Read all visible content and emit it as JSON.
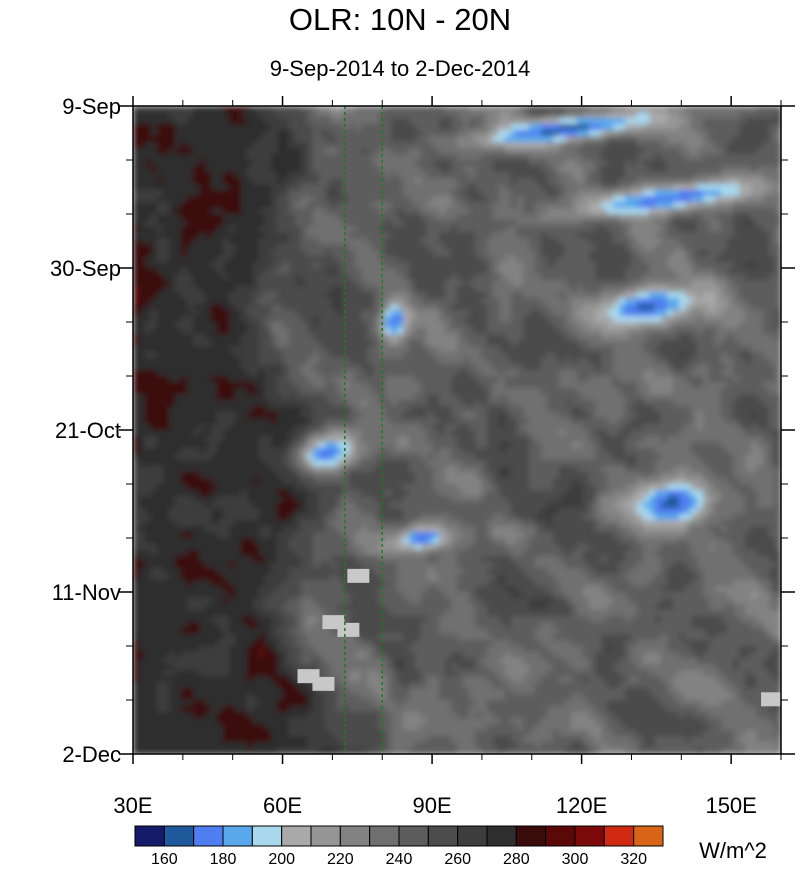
{
  "chart_data": {
    "type": "heatmap",
    "title": "OLR: 10N - 20N",
    "subtitle": "9-Sep-2014 to 2-Dec-2014",
    "x_axis": {
      "ticks": [
        30,
        60,
        90,
        120,
        150
      ],
      "tick_labels": [
        "30E",
        "60E",
        "90E",
        "120E",
        "150E"
      ],
      "range": [
        30,
        160
      ]
    },
    "y_axis": {
      "tick_labels": [
        "9-Sep",
        "30-Sep",
        "21-Oct",
        "11-Nov",
        "2-Dec"
      ],
      "range_days": [
        0,
        84
      ],
      "tick_days": [
        0,
        21,
        42,
        63,
        84
      ],
      "direction": "top-to-bottom"
    },
    "reference_lines": [
      {
        "lon": 72.5,
        "style": "dashed",
        "color": "#1f7a1f"
      },
      {
        "lon": 80,
        "style": "dashed",
        "color": "#1f7a1f"
      }
    ],
    "colorbar": {
      "units": "W/m^2",
      "labels": [
        "160",
        "180",
        "200",
        "220",
        "240",
        "260",
        "280",
        "300",
        "320"
      ],
      "label_values": [
        160,
        180,
        200,
        220,
        240,
        260,
        280,
        300,
        320
      ],
      "levels": [
        150,
        160,
        170,
        180,
        190,
        200,
        210,
        220,
        230,
        240,
        250,
        260,
        270,
        280,
        290,
        300,
        310,
        320,
        330
      ],
      "colors": [
        "#161a6b",
        "#1f5a9c",
        "#4f7ef0",
        "#5aa8ec",
        "#a9d8ee",
        "#a9a9a9",
        "#959595",
        "#828282",
        "#6f6f6f",
        "#5d5d5d",
        "#4c4c4c",
        "#3d3d3d",
        "#2e2e2e",
        "#3a0c0c",
        "#5a0808",
        "#7d0a0a",
        "#d02a12",
        "#d86418"
      ]
    },
    "features": [
      {
        "name": "warm-dry-west",
        "lon": [
          30,
          70
        ],
        "day": [
          0,
          84
        ],
        "olr": 285
      },
      {
        "name": "convective-band-early-sep",
        "lon": [
          94,
          140
        ],
        "day": [
          1,
          5
        ],
        "olr": 165
      },
      {
        "name": "convective-band-mid-sep",
        "lon": [
          115,
          160
        ],
        "day": [
          10,
          14
        ],
        "olr": 170
      },
      {
        "name": "convective-blob-early-oct",
        "lon": [
          79,
          86
        ],
        "day": [
          25,
          31
        ],
        "olr": 168
      },
      {
        "name": "convective-band-early-oct",
        "lon": [
          120,
          147
        ],
        "day": [
          23,
          29
        ],
        "olr": 168
      },
      {
        "name": "convective-blob-late-oct",
        "lon": [
          62,
          76
        ],
        "day": [
          42,
          48
        ],
        "olr": 175
      },
      {
        "name": "convective-blob-late-oct-east",
        "lon": [
          128,
          148
        ],
        "day": [
          48,
          55
        ],
        "olr": 165
      },
      {
        "name": "convective-blob-nov",
        "lon": [
          81,
          95
        ],
        "day": [
          54,
          58
        ],
        "olr": 172
      },
      {
        "name": "missing-data-patches",
        "lon": [
          63,
          78
        ],
        "day": [
          59,
          78
        ],
        "olr": null
      }
    ]
  }
}
